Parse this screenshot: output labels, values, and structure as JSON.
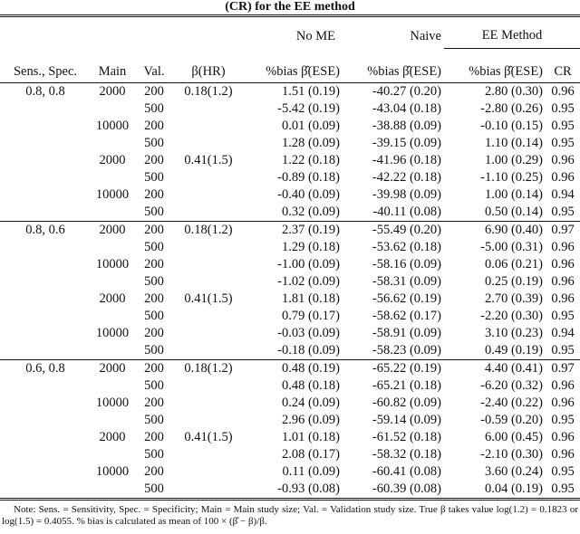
{
  "caption": "(CR) for the EE method",
  "colors": {
    "background": "#ffffff",
    "text": "#111111",
    "rule": "#111111"
  },
  "table": {
    "group_headers": [
      {
        "label": "No ME"
      },
      {
        "label": "Naive"
      },
      {
        "label": "EE Method"
      }
    ],
    "columns": [
      "Sens., Spec.",
      "Main",
      "Val.",
      "β(HR)",
      "%bias β̂(ESE)",
      "%bias β̂(ESE)",
      "%bias β̂(ESE)",
      "CR"
    ],
    "blocks": [
      {
        "rows": [
          [
            "0.8, 0.8",
            "2000",
            "200",
            "0.18(1.2)",
            "1.51 (0.19)",
            "-40.27 (0.20)",
            "2.80 (0.30)",
            "0.96"
          ],
          [
            "",
            "",
            "500",
            "",
            "-5.42 (0.19)",
            "-43.04 (0.18)",
            "-2.80 (0.26)",
            "0.95"
          ],
          [
            "",
            "10000",
            "200",
            "",
            "0.01 (0.09)",
            "-38.88 (0.09)",
            "-0.10 (0.15)",
            "0.95"
          ],
          [
            "",
            "",
            "500",
            "",
            "1.28 (0.09)",
            "-39.15 (0.09)",
            "1.10 (0.14)",
            "0.95"
          ],
          [
            "",
            "2000",
            "200",
            "0.41(1.5)",
            "1.22 (0.18)",
            "-41.96 (0.18)",
            "1.00 (0.29)",
            "0.96"
          ],
          [
            "",
            "",
            "500",
            "",
            "-0.89 (0.18)",
            "-42.22 (0.18)",
            "-1.10 (0.25)",
            "0.96"
          ],
          [
            "",
            "10000",
            "200",
            "",
            "-0.40 (0.09)",
            "-39.98 (0.09)",
            "1.00 (0.14)",
            "0.94"
          ],
          [
            "",
            "",
            "500",
            "",
            "0.32 (0.09)",
            "-40.11 (0.08)",
            "0.50 (0.14)",
            "0.95"
          ]
        ]
      },
      {
        "rows": [
          [
            "0.8, 0.6",
            "2000",
            "200",
            "0.18(1.2)",
            "2.37 (0.19)",
            "-55.49 (0.20)",
            "6.90 (0.40)",
            "0.97"
          ],
          [
            "",
            "",
            "500",
            "",
            "1.29 (0.18)",
            "-53.62 (0.18)",
            "-5.00 (0.31)",
            "0.96"
          ],
          [
            "",
            "10000",
            "200",
            "",
            "-1.00 (0.09)",
            "-58.16 (0.09)",
            "0.06 (0.21)",
            "0.96"
          ],
          [
            "",
            "",
            "500",
            "",
            "-1.02 (0.09)",
            "-58.31 (0.09)",
            "0.25 (0.19)",
            "0.96"
          ],
          [
            "",
            "2000",
            "200",
            "0.41(1.5)",
            "1.81 (0.18)",
            "-56.62 (0.19)",
            "2.70 (0.39)",
            "0.96"
          ],
          [
            "",
            "",
            "500",
            "",
            "0.79 (0.17)",
            "-58.62 (0.17)",
            "-2.20 (0.30)",
            "0.95"
          ],
          [
            "",
            "10000",
            "200",
            "",
            "-0.03 (0.09)",
            "-58.91 (0.09)",
            "3.10 (0.23)",
            "0.94"
          ],
          [
            "",
            "",
            "500",
            "",
            "-0.18 (0.09)",
            "-58.23 (0.09)",
            "0.49 (0.19)",
            "0.95"
          ]
        ]
      },
      {
        "rows": [
          [
            "0.6, 0.8",
            "2000",
            "200",
            "0.18(1.2)",
            "0.48 (0.19)",
            "-65.22 (0.19)",
            "4.40 (0.41)",
            "0.97"
          ],
          [
            "",
            "",
            "500",
            "",
            "0.48 (0.18)",
            "-65.21 (0.18)",
            "-6.20 (0.32)",
            "0.96"
          ],
          [
            "",
            "10000",
            "200",
            "",
            "0.24 (0.09)",
            "-60.82 (0.09)",
            "-2.40 (0.22)",
            "0.96"
          ],
          [
            "",
            "",
            "500",
            "",
            "2.96 (0.09)",
            "-59.14 (0.09)",
            "-0.59 (0.20)",
            "0.95"
          ],
          [
            "",
            "2000",
            "200",
            "0.41(1.5)",
            "1.01 (0.18)",
            "-61.52 (0.18)",
            "6.00 (0.45)",
            "0.96"
          ],
          [
            "",
            "",
            "500",
            "",
            "2.08 (0.17)",
            "-58.32 (0.18)",
            "-2.10 (0.30)",
            "0.96"
          ],
          [
            "",
            "10000",
            "200",
            "",
            "0.11 (0.09)",
            "-60.41 (0.08)",
            "3.60 (0.24)",
            "0.95"
          ],
          [
            "",
            "",
            "500",
            "",
            "-0.93 (0.08)",
            "-60.39 (0.08)",
            "0.04 (0.19)",
            "0.95"
          ]
        ]
      }
    ]
  },
  "note": {
    "text": "Note: Sens. = Sensitivity, Spec. = Specificity; Main = Main study size; Val. = Validation study size. True β takes value log(1.2) = 0.1823 or log(1.5) = 0.4055. % bias is calculated as mean of 100 × (β̂ − β)/β."
  }
}
